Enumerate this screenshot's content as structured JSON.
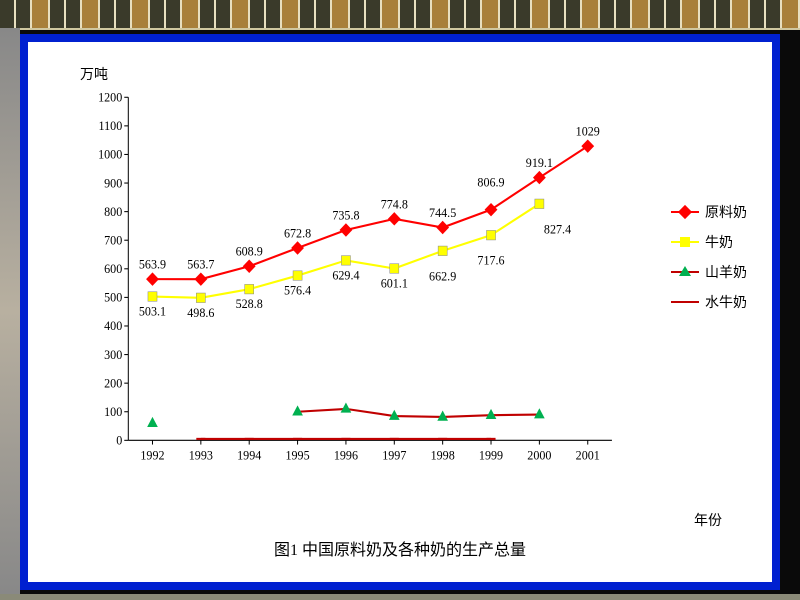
{
  "frame": {
    "outer_bg": "#0a0a0a",
    "border_color": "#0020d0",
    "panel_bg": "#ffffff"
  },
  "chart": {
    "type": "line",
    "y_axis_label": "万吨",
    "x_axis_label": "年份",
    "caption": "图1  中国原料奶及各种奶的生产总量",
    "x_categories": [
      "1992",
      "1993",
      "1994",
      "1995",
      "1996",
      "1997",
      "1998",
      "1999",
      "2000",
      "2001"
    ],
    "y_ticks": [
      0,
      100,
      200,
      300,
      400,
      500,
      600,
      700,
      800,
      900,
      1000,
      1100,
      1200
    ],
    "ylim": [
      0,
      1200
    ],
    "series": [
      {
        "name": "原料奶",
        "color": "#ff0000",
        "marker": "diamond",
        "marker_fill": "#ff0000",
        "values": [
          563.9,
          563.7,
          608.9,
          672.8,
          735.8,
          774.8,
          744.5,
          806.9,
          919.1,
          1029
        ],
        "labels_above": true
      },
      {
        "name": "牛奶",
        "color": "#ffff00",
        "marker": "square",
        "marker_fill": "#ffff00",
        "values": [
          503.1,
          498.6,
          528.8,
          576.4,
          629.4,
          601.1,
          662.9,
          717.6,
          827.4,
          null
        ],
        "labels_above": false
      },
      {
        "name": "山羊奶",
        "color": "#c00000",
        "marker": "triangle",
        "marker_fill": "#00b050",
        "values": [
          60,
          null,
          null,
          100,
          110,
          85,
          82,
          88,
          90,
          null
        ],
        "labels_above": false,
        "no_value_labels": true
      },
      {
        "name": "水牛奶",
        "color": "#c00000",
        "marker": "dash",
        "marker_fill": "#c00000",
        "values": [
          null,
          5,
          5,
          5,
          5,
          5,
          5,
          5,
          null,
          null
        ],
        "labels_above": false,
        "no_value_labels": true
      }
    ],
    "label_fontsize": 12,
    "axis_fontsize": 12,
    "line_width": 2,
    "marker_size": 9,
    "background_color": "#ffffff"
  }
}
